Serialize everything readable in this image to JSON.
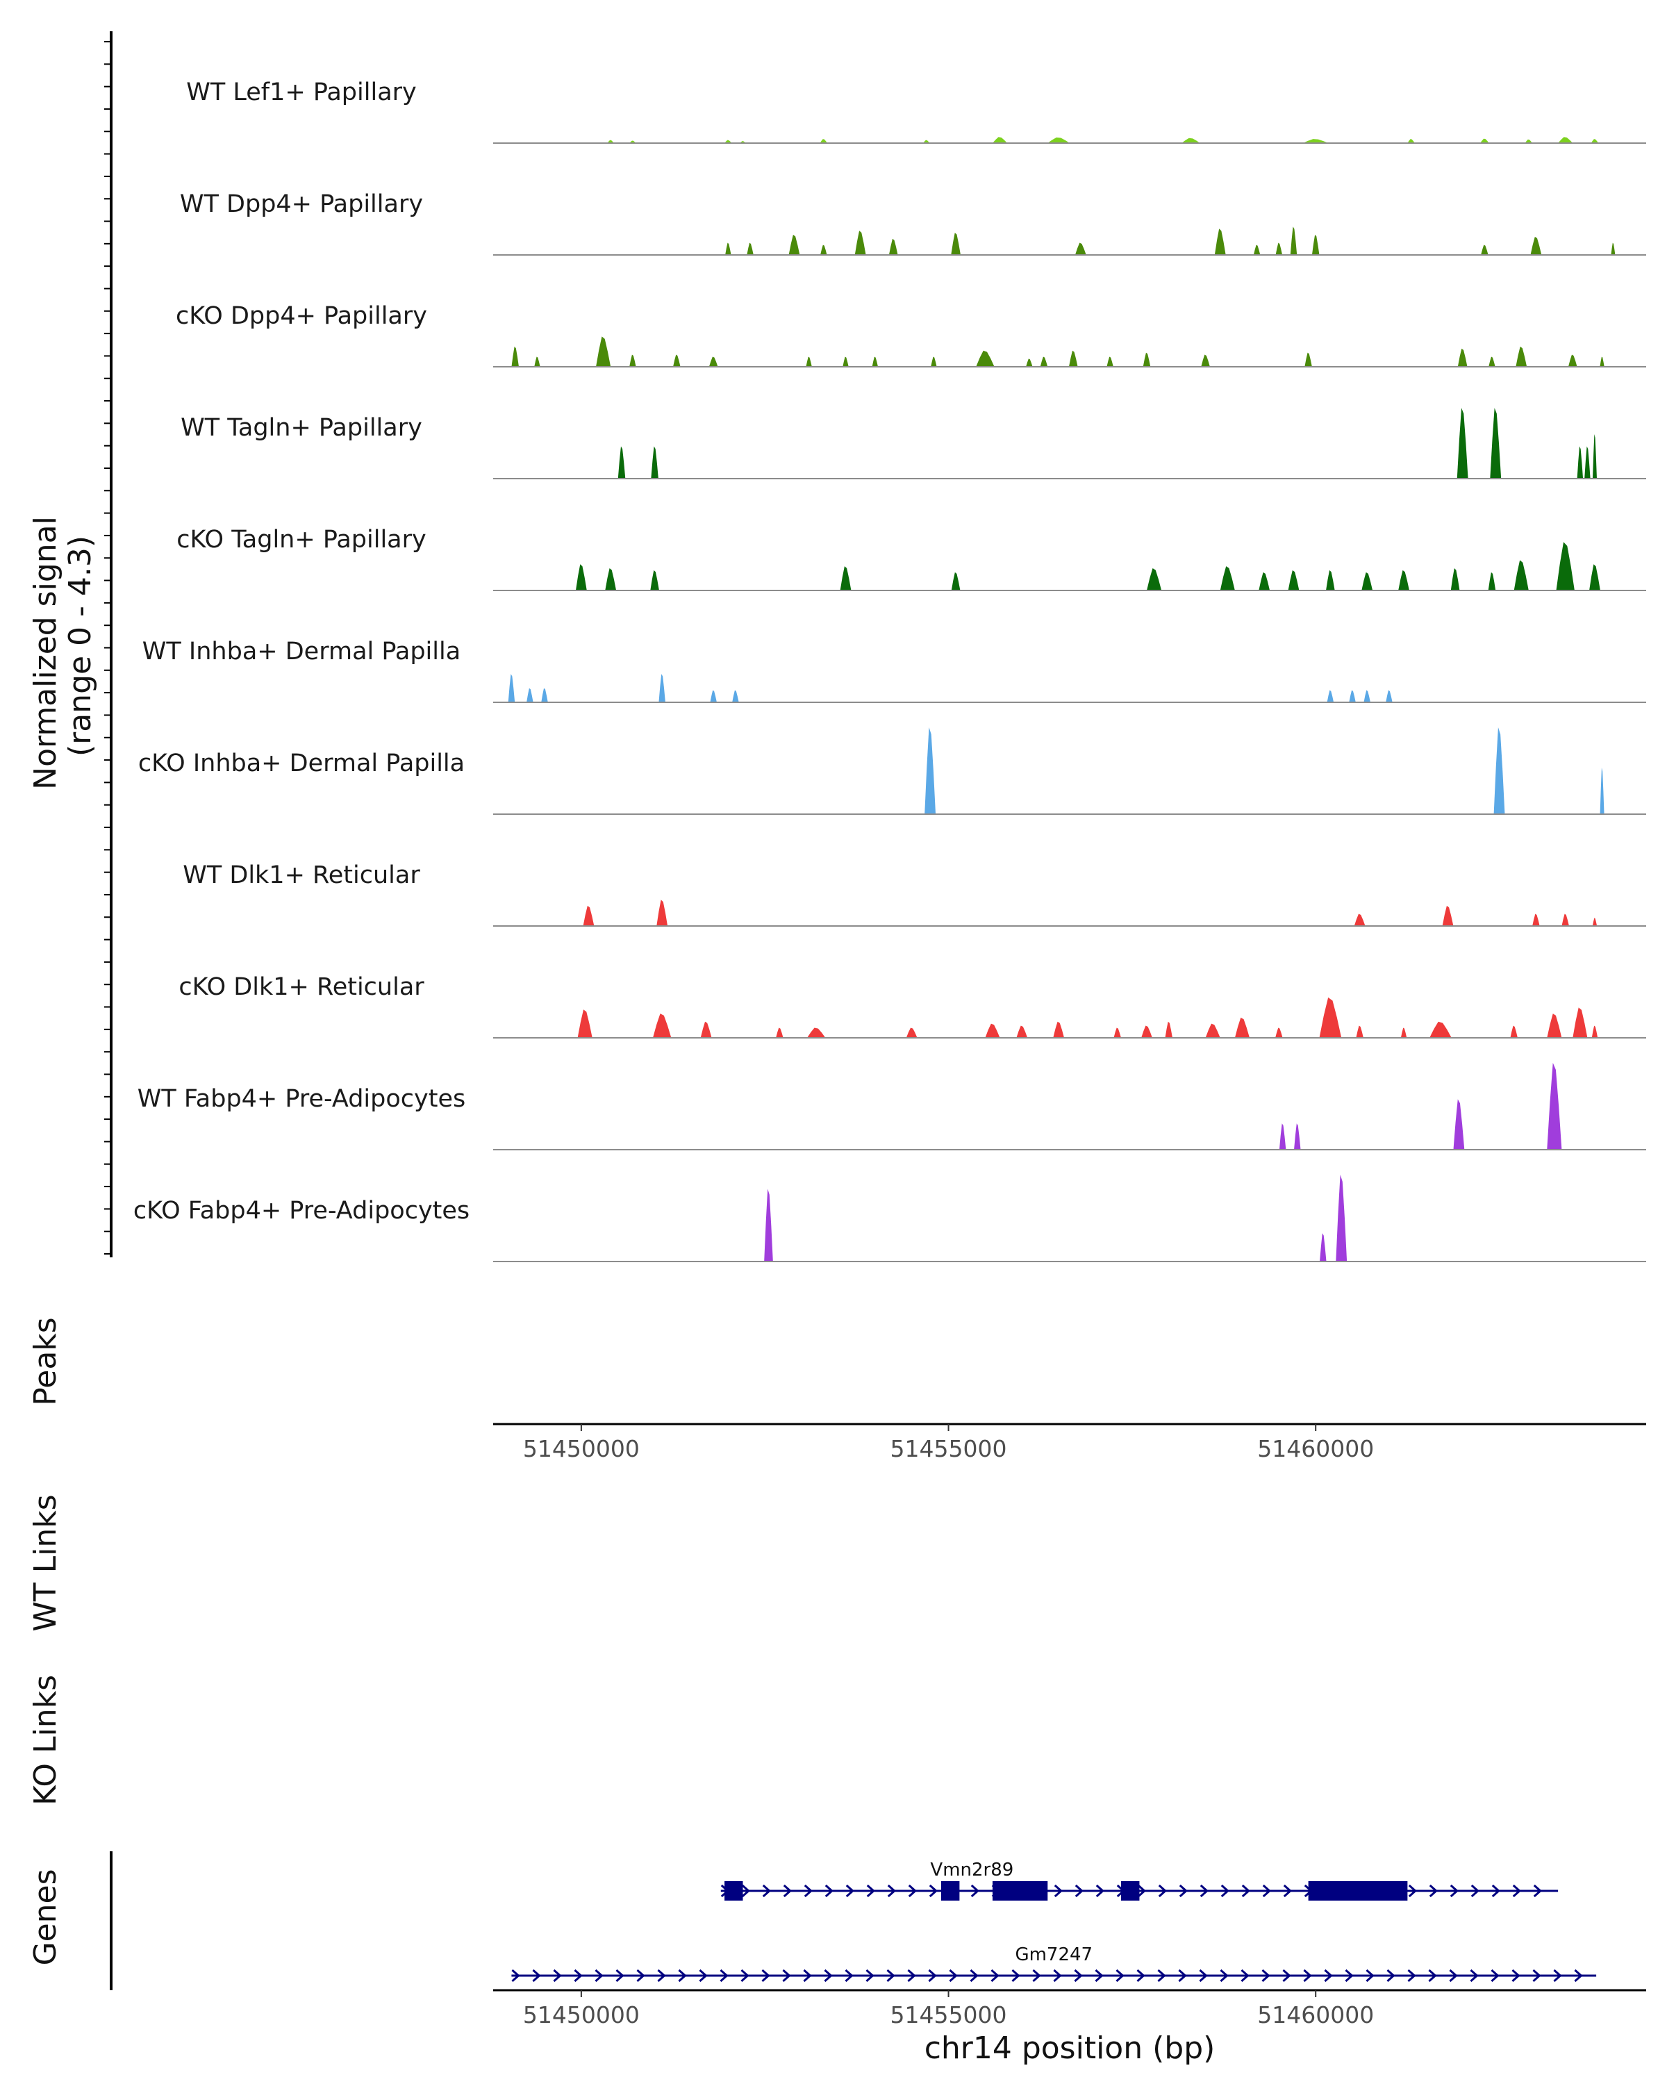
{
  "chart_data": {
    "type": "area",
    "title": "",
    "chromosome": "chr14",
    "xlabel": "chr14 position (bp)",
    "xlim": [
      51448800,
      51464500
    ],
    "x_ticks": [
      {
        "value": 51450000,
        "label": "51450000"
      },
      {
        "value": 51455000,
        "label": "51455000"
      },
      {
        "value": 51460000,
        "label": "51460000"
      }
    ],
    "signal": {
      "ylabel_line1": "Normalized signal",
      "ylabel_line2": "(range 0 - 4.3)",
      "ylim": [
        0,
        4.3
      ],
      "tracks": [
        {
          "name": "WT Lef1+ Papillary",
          "color": "#7CD11E",
          "peaks": [
            [
              51450400,
              90,
              0.15
            ],
            [
              51450700,
              90,
              0.12
            ],
            [
              51452000,
              100,
              0.15
            ],
            [
              51452200,
              80,
              0.1
            ],
            [
              51453300,
              100,
              0.2
            ],
            [
              51454700,
              90,
              0.15
            ],
            [
              51455700,
              200,
              0.3
            ],
            [
              51456500,
              300,
              0.28
            ],
            [
              51458300,
              250,
              0.25
            ],
            [
              51460000,
              350,
              0.2
            ],
            [
              51461300,
              100,
              0.2
            ],
            [
              51462300,
              120,
              0.22
            ],
            [
              51462900,
              100,
              0.18
            ],
            [
              51463400,
              200,
              0.3
            ],
            [
              51463800,
              100,
              0.2
            ]
          ]
        },
        {
          "name": "WT Dpp4+ Papillary",
          "color": "#4A8A0A",
          "peaks": [
            [
              51452000,
              80,
              0.6
            ],
            [
              51452300,
              90,
              0.6
            ],
            [
              51452900,
              150,
              1.0
            ],
            [
              51453300,
              90,
              0.5
            ],
            [
              51453800,
              150,
              1.2
            ],
            [
              51454250,
              120,
              0.8
            ],
            [
              51455100,
              130,
              1.1
            ],
            [
              51456800,
              150,
              0.6
            ],
            [
              51458700,
              150,
              1.3
            ],
            [
              51459200,
              90,
              0.5
            ],
            [
              51459500,
              90,
              0.6
            ],
            [
              51459700,
              90,
              1.4
            ],
            [
              51460000,
              100,
              1.0
            ],
            [
              51462300,
              100,
              0.5
            ],
            [
              51463000,
              150,
              0.9
            ],
            [
              51464050,
              40,
              0.6
            ]
          ]
        },
        {
          "name": "cKO Dpp4+ Papillary",
          "color": "#4A8A0A",
          "peaks": [
            [
              51449100,
              100,
              1.0
            ],
            [
              51449400,
              80,
              0.5
            ],
            [
              51450300,
              200,
              1.5
            ],
            [
              51450700,
              90,
              0.6
            ],
            [
              51451300,
              100,
              0.6
            ],
            [
              51451800,
              120,
              0.5
            ],
            [
              51453100,
              80,
              0.5
            ],
            [
              51453600,
              80,
              0.5
            ],
            [
              51454000,
              80,
              0.5
            ],
            [
              51454800,
              80,
              0.5
            ],
            [
              51455500,
              250,
              0.8
            ],
            [
              51456100,
              90,
              0.4
            ],
            [
              51456300,
              100,
              0.5
            ],
            [
              51456700,
              120,
              0.8
            ],
            [
              51457200,
              90,
              0.5
            ],
            [
              51457700,
              100,
              0.7
            ],
            [
              51458500,
              120,
              0.6
            ],
            [
              51459900,
              100,
              0.7
            ],
            [
              51462000,
              130,
              0.9
            ],
            [
              51462400,
              90,
              0.5
            ],
            [
              51462800,
              150,
              1.0
            ],
            [
              51463500,
              120,
              0.6
            ],
            [
              51463900,
              60,
              0.5
            ]
          ]
        },
        {
          "name": "WT Tagln+ Papillary",
          "color": "#0A6B0A",
          "peaks": [
            [
              51450550,
              100,
              1.6
            ],
            [
              51451000,
              100,
              1.6
            ],
            [
              51462000,
              150,
              3.5
            ],
            [
              51462450,
              150,
              3.5
            ],
            [
              51463600,
              80,
              1.6
            ],
            [
              51463700,
              80,
              1.6
            ],
            [
              51463800,
              40,
              2.2
            ]
          ]
        },
        {
          "name": "cKO Tagln+ Papillary",
          "color": "#0A6B0A",
          "peaks": [
            [
              51450000,
              150,
              1.3
            ],
            [
              51450400,
              150,
              1.1
            ],
            [
              51451000,
              120,
              1.0
            ],
            [
              51453600,
              150,
              1.2
            ],
            [
              51455100,
              120,
              0.9
            ],
            [
              51457800,
              200,
              1.1
            ],
            [
              51458800,
              200,
              1.2
            ],
            [
              51459300,
              150,
              0.9
            ],
            [
              51459700,
              150,
              1.0
            ],
            [
              51460200,
              120,
              1.0
            ],
            [
              51460700,
              150,
              0.9
            ],
            [
              51461200,
              150,
              1.0
            ],
            [
              51461900,
              120,
              1.1
            ],
            [
              51462400,
              100,
              0.9
            ],
            [
              51462800,
              200,
              1.5
            ],
            [
              51463400,
              250,
              2.4
            ],
            [
              51463800,
              150,
              1.3
            ]
          ]
        },
        {
          "name": "WT Inhba+ Dermal Papilla",
          "color": "#5AA8E6",
          "peaks": [
            [
              51449050,
              90,
              1.4
            ],
            [
              51449300,
              90,
              0.7
            ],
            [
              51449500,
              90,
              0.7
            ],
            [
              51451100,
              90,
              1.4
            ],
            [
              51451800,
              90,
              0.6
            ],
            [
              51452100,
              90,
              0.6
            ],
            [
              51460200,
              90,
              0.6
            ],
            [
              51460500,
              90,
              0.6
            ],
            [
              51460700,
              90,
              0.6
            ],
            [
              51461000,
              90,
              0.6
            ]
          ]
        },
        {
          "name": "cKO Inhba+ Dermal Papilla",
          "color": "#5AA8E6",
          "peaks": [
            [
              51454750,
              150,
              4.3
            ],
            [
              51462500,
              150,
              4.3
            ],
            [
              51463900,
              40,
              2.3
            ]
          ]
        },
        {
          "name": "WT Dlk1+ Reticular",
          "color": "#EE3A3A",
          "peaks": [
            [
              51450100,
              150,
              1.0
            ],
            [
              51451100,
              150,
              1.3
            ],
            [
              51460600,
              150,
              0.6
            ],
            [
              51461800,
              150,
              1.0
            ],
            [
              51463000,
              100,
              0.6
            ],
            [
              51463400,
              100,
              0.6
            ],
            [
              51463800,
              60,
              0.4
            ]
          ]
        },
        {
          "name": "cKO Dlk1+ Reticular",
          "color": "#EE3A3A",
          "peaks": [
            [
              51450050,
              200,
              1.4
            ],
            [
              51451100,
              250,
              1.2
            ],
            [
              51451700,
              150,
              0.8
            ],
            [
              51452700,
              100,
              0.5
            ],
            [
              51453200,
              250,
              0.5
            ],
            [
              51454500,
              150,
              0.5
            ],
            [
              51455600,
              200,
              0.7
            ],
            [
              51456000,
              150,
              0.6
            ],
            [
              51456500,
              150,
              0.8
            ],
            [
              51457300,
              100,
              0.5
            ],
            [
              51457700,
              150,
              0.6
            ],
            [
              51458000,
              100,
              0.8
            ],
            [
              51458600,
              200,
              0.7
            ],
            [
              51459000,
              200,
              1.0
            ],
            [
              51459500,
              100,
              0.5
            ],
            [
              51460200,
              300,
              2.0
            ],
            [
              51460600,
              100,
              0.6
            ],
            [
              51461200,
              80,
              0.5
            ],
            [
              51461700,
              300,
              0.8
            ],
            [
              51462700,
              100,
              0.6
            ],
            [
              51463250,
              200,
              1.2
            ],
            [
              51463600,
              200,
              1.5
            ],
            [
              51463800,
              80,
              0.6
            ]
          ]
        },
        {
          "name": "WT Fabp4+ Pre-Adipocytes",
          "color": "#A03DDC",
          "peaks": [
            [
              51459550,
              90,
              1.3
            ],
            [
              51459750,
              90,
              1.3
            ],
            [
              51461950,
              150,
              2.5
            ],
            [
              51463250,
              200,
              4.3
            ]
          ]
        },
        {
          "name": "cKO Fabp4+ Pre-Adipocytes",
          "color": "#A03DDC",
          "peaks": [
            [
              51452550,
              120,
              3.6
            ],
            [
              51460100,
              90,
              1.4
            ],
            [
              51460350,
              150,
              4.3
            ]
          ]
        }
      ]
    },
    "peaks_track": {
      "label": "Peaks",
      "regions": []
    },
    "links_tracks": [
      {
        "label": "WT Links",
        "links": []
      },
      {
        "label": "KO Links",
        "links": []
      }
    ],
    "genes_track": {
      "label": "Genes",
      "color": "#000080",
      "genes": [
        {
          "name": "Vmn2r89",
          "strand": "+",
          "start": 51451900,
          "end": 51463300,
          "exons": [
            [
              51451950,
              51452200
            ],
            [
              51454900,
              51455150
            ],
            [
              51455600,
              51456350
            ],
            [
              51457350,
              51457600
            ],
            [
              51459900,
              51461250
            ]
          ]
        },
        {
          "name": "Gm7247",
          "strand": "+",
          "start": 51449050,
          "end": 51463820,
          "exons": []
        }
      ]
    }
  }
}
